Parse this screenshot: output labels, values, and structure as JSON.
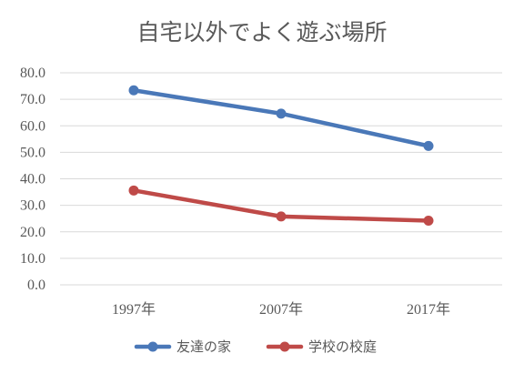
{
  "chart_data": {
    "type": "line",
    "title": "自宅以外でよく遊ぶ場所",
    "categories": [
      "1997年",
      "2007年",
      "2017年"
    ],
    "ylim": [
      0,
      80
    ],
    "yticks": [
      "0.0",
      "10.0",
      "20.0",
      "30.0",
      "40.0",
      "50.0",
      "60.0",
      "70.0",
      "80.0"
    ],
    "grid": true,
    "legend_position": "bottom",
    "series": [
      {
        "name": "友達の家",
        "values": [
          73.4,
          64.6,
          52.4
        ],
        "color": "#4a78b8"
      },
      {
        "name": "学校の校庭",
        "values": [
          35.6,
          25.8,
          24.2
        ],
        "color": "#bf4a48"
      }
    ]
  }
}
